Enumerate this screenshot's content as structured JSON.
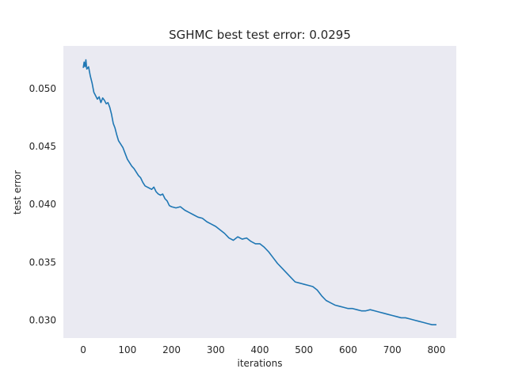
{
  "chart_data": {
    "type": "line",
    "title": "SGHMC best test error: 0.0295",
    "xlabel": "iterations",
    "ylabel": "test error",
    "xlim": [
      -45,
      845
    ],
    "ylim": [
      0.02845,
      0.0537
    ],
    "xticks": [
      0,
      100,
      200,
      300,
      400,
      500,
      600,
      700,
      800
    ],
    "yticks": [
      0.03,
      0.035,
      0.04,
      0.045,
      0.05
    ],
    "xtick_labels": [
      "0",
      "100",
      "200",
      "300",
      "400",
      "500",
      "600",
      "700",
      "800"
    ],
    "ytick_labels": [
      "0.030",
      "0.035",
      "0.040",
      "0.045",
      "0.050"
    ],
    "grid": false,
    "background_color": "#eaeaf2",
    "series": [
      {
        "color": "#1f77b4",
        "x": [
          0,
          2,
          4,
          6,
          8,
          12,
          16,
          20,
          24,
          28,
          32,
          36,
          40,
          44,
          48,
          52,
          56,
          60,
          64,
          68,
          72,
          76,
          80,
          85,
          90,
          95,
          100,
          105,
          110,
          115,
          120,
          125,
          130,
          135,
          140,
          145,
          150,
          155,
          160,
          165,
          170,
          175,
          180,
          185,
          190,
          195,
          200,
          210,
          220,
          230,
          240,
          250,
          260,
          270,
          280,
          290,
          300,
          310,
          320,
          330,
          340,
          350,
          360,
          370,
          380,
          390,
          400,
          410,
          420,
          430,
          440,
          450,
          460,
          470,
          480,
          490,
          500,
          510,
          520,
          530,
          540,
          550,
          560,
          570,
          580,
          590,
          600,
          610,
          620,
          630,
          640,
          650,
          660,
          670,
          680,
          690,
          700,
          710,
          720,
          730,
          740,
          750,
          760,
          770,
          780,
          790,
          800
        ],
        "values": [
          0.0518,
          0.0523,
          0.0519,
          0.0525,
          0.0517,
          0.0519,
          0.0511,
          0.0505,
          0.0497,
          0.0494,
          0.0491,
          0.0493,
          0.0488,
          0.0492,
          0.049,
          0.0487,
          0.0488,
          0.0484,
          0.0478,
          0.047,
          0.0466,
          0.046,
          0.0455,
          0.0452,
          0.0449,
          0.0444,
          0.0439,
          0.0436,
          0.0433,
          0.0431,
          0.0428,
          0.0425,
          0.0423,
          0.0419,
          0.0416,
          0.0415,
          0.0414,
          0.0413,
          0.0415,
          0.0411,
          0.0409,
          0.0408,
          0.0409,
          0.0405,
          0.0403,
          0.0399,
          0.0398,
          0.0397,
          0.0398,
          0.0395,
          0.0393,
          0.0391,
          0.0389,
          0.0388,
          0.0385,
          0.0383,
          0.0381,
          0.0378,
          0.0375,
          0.0371,
          0.0369,
          0.0372,
          0.037,
          0.0371,
          0.0368,
          0.0366,
          0.0366,
          0.0363,
          0.0359,
          0.0354,
          0.0349,
          0.0345,
          0.0341,
          0.0337,
          0.0333,
          0.0332,
          0.0331,
          0.033,
          0.0329,
          0.0326,
          0.0321,
          0.0317,
          0.0315,
          0.0313,
          0.0312,
          0.0311,
          0.031,
          0.031,
          0.0309,
          0.0308,
          0.0308,
          0.0309,
          0.0308,
          0.0307,
          0.0306,
          0.0305,
          0.0304,
          0.0303,
          0.0302,
          0.0302,
          0.0301,
          0.03,
          0.0299,
          0.0298,
          0.0297,
          0.0296,
          0.0296
        ]
      }
    ]
  }
}
